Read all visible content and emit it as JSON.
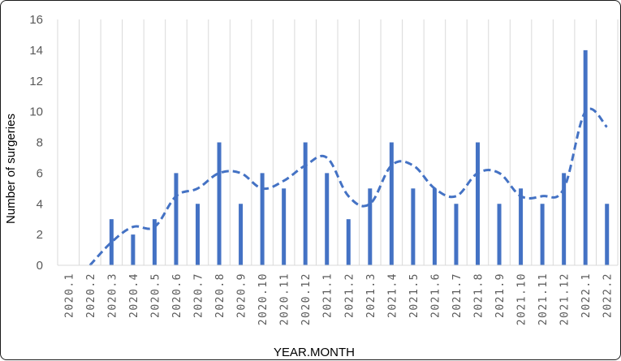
{
  "chart_data": {
    "type": "bar",
    "xlabel": "YEAR.MONTH",
    "ylabel": "Number of surgeries",
    "ylim": [
      0,
      16
    ],
    "yticks": [
      "0",
      "2",
      "4",
      "6",
      "8",
      "10",
      "12",
      "14",
      "16"
    ],
    "grid": "vertical",
    "legend": "none",
    "categories": [
      "2020.1",
      "2020.2",
      "2020.3",
      "2020.4",
      "2020.5",
      "2020.6",
      "2020.7",
      "2020.8",
      "2020.9",
      "2020.10",
      "2020.11",
      "2020.12",
      "2021.1",
      "2021.2",
      "2021.3",
      "2021.4",
      "2021.5",
      "2021.6",
      "2021.7",
      "2021.8",
      "2021.9",
      "2021.10",
      "2021.11",
      "2021.12",
      "2022.1",
      "2022.2"
    ],
    "series": [
      {
        "type": "bar",
        "values": [
          0,
          0,
          3,
          2,
          3,
          6,
          4,
          8,
          4,
          6,
          5,
          8,
          6,
          3,
          5,
          8,
          5,
          5,
          4,
          8,
          4,
          5,
          4,
          6,
          14,
          4
        ],
        "color": "#4472c4"
      },
      {
        "type": "line",
        "style": "dashed",
        "values": [
          null,
          0,
          1.5,
          2.5,
          2.5,
          4.5,
          5,
          6,
          6,
          5,
          5.5,
          6.5,
          7,
          4.5,
          4,
          6.5,
          6.5,
          5,
          4.5,
          6,
          6,
          4.5,
          4.5,
          5,
          10,
          9
        ],
        "color": "#4472c4"
      }
    ]
  }
}
